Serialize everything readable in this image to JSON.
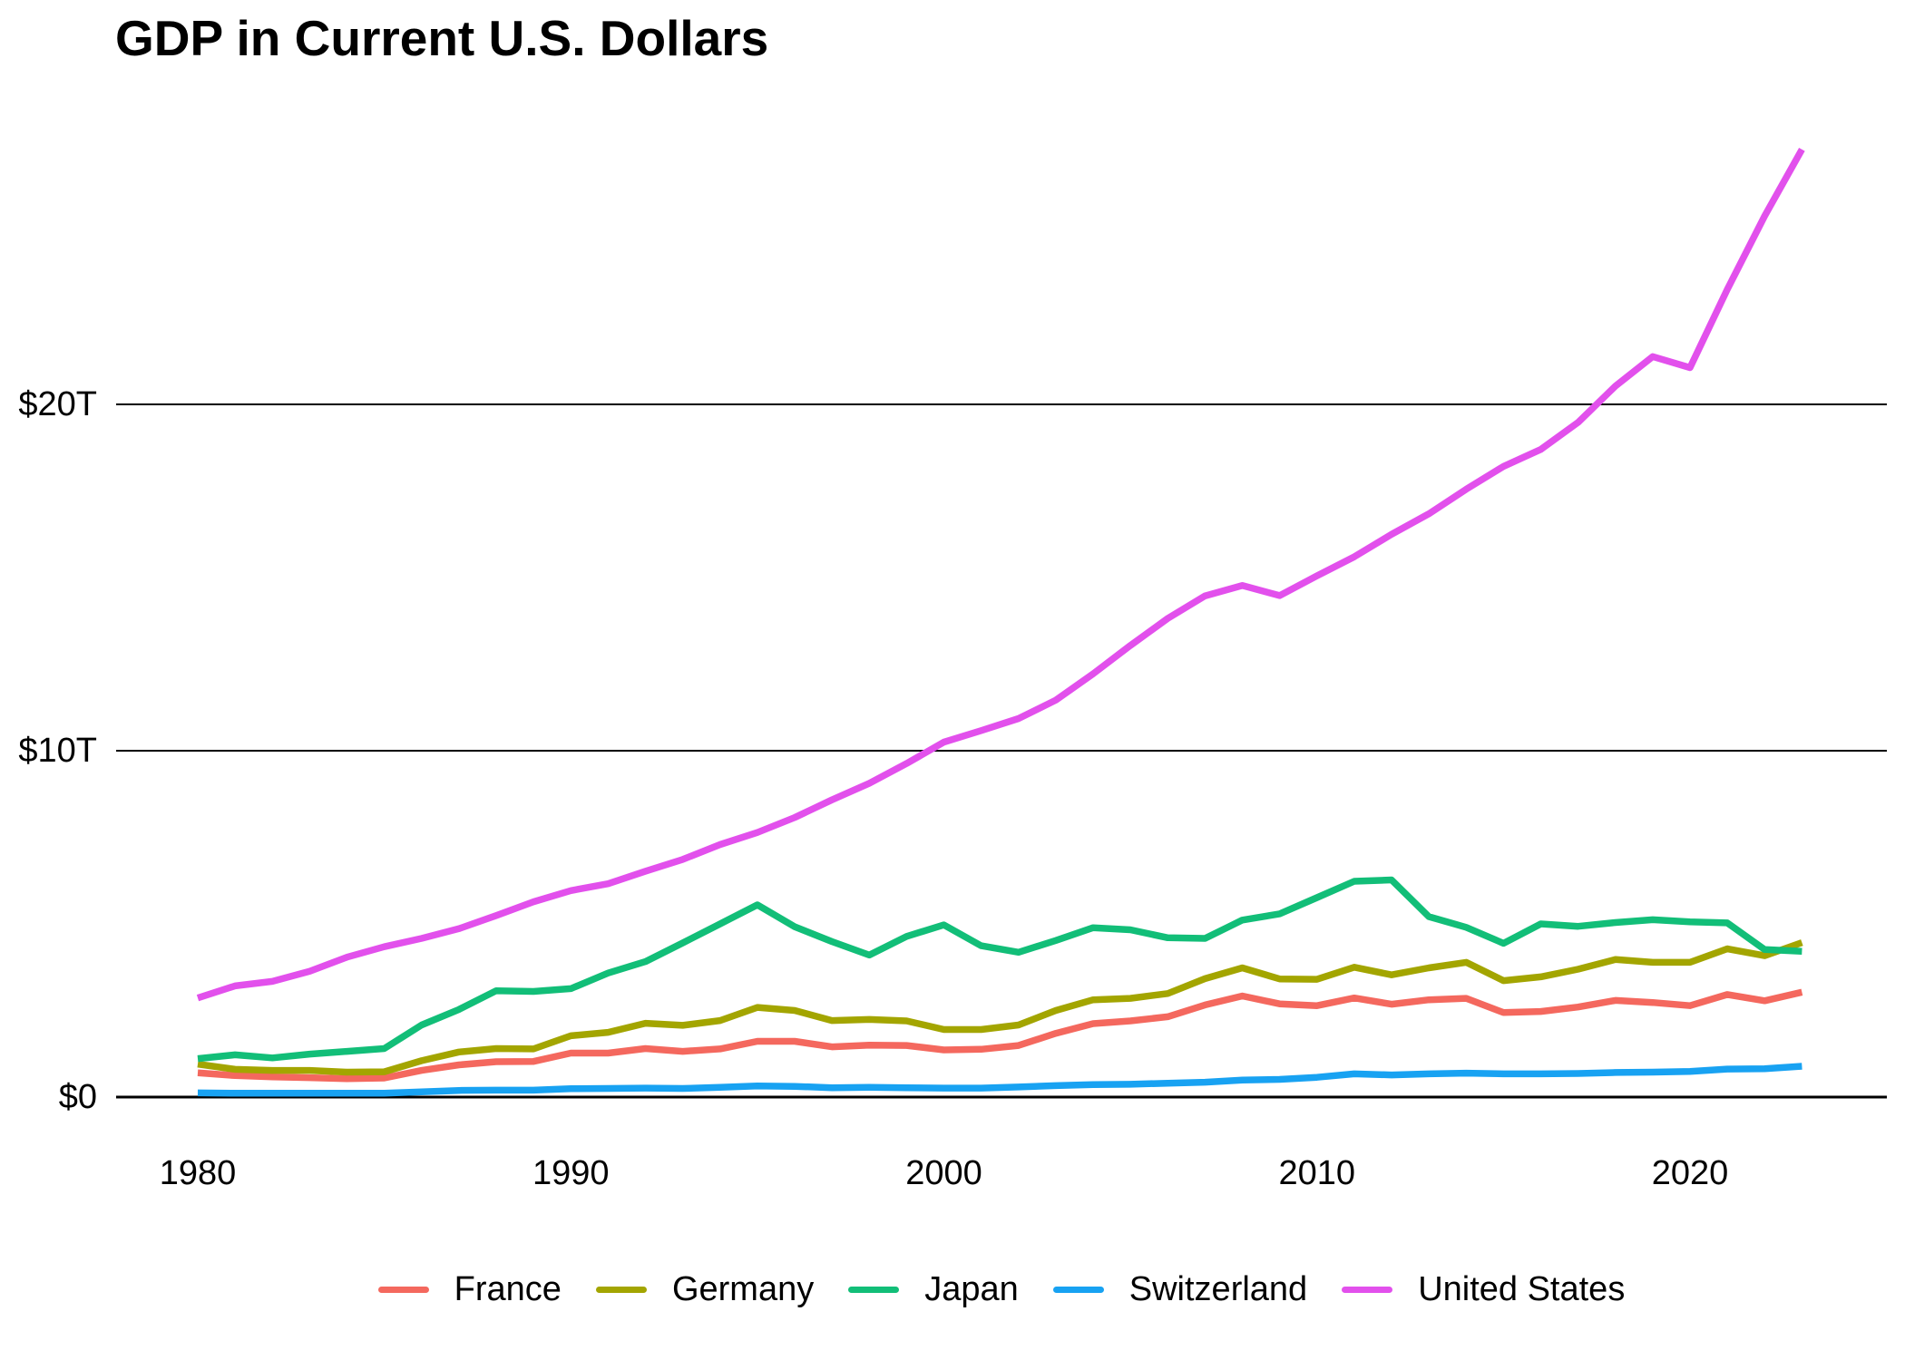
{
  "chart_data": {
    "type": "line",
    "title": "GDP in Current U.S. Dollars",
    "xlabel": "",
    "ylabel": "",
    "xlim": [
      1980,
      2023
    ],
    "ylim": [
      0,
      28
    ],
    "grid": "horizontal",
    "legend_position": "bottom",
    "yticks": [
      {
        "value": 0,
        "label": "$0"
      },
      {
        "value": 10,
        "label": "$10T"
      },
      {
        "value": 20,
        "label": "$20T"
      }
    ],
    "xticks": [
      {
        "value": 1980,
        "label": "1980"
      },
      {
        "value": 1990,
        "label": "1990"
      },
      {
        "value": 2000,
        "label": "2000"
      },
      {
        "value": 2010,
        "label": "2010"
      },
      {
        "value": 2020,
        "label": "2020"
      }
    ],
    "x": [
      1980,
      1981,
      1982,
      1983,
      1984,
      1985,
      1986,
      1987,
      1988,
      1989,
      1990,
      1991,
      1992,
      1993,
      1994,
      1995,
      1996,
      1997,
      1998,
      1999,
      2000,
      2001,
      2002,
      2003,
      2004,
      2005,
      2006,
      2007,
      2008,
      2009,
      2010,
      2011,
      2012,
      2013,
      2014,
      2015,
      2016,
      2017,
      2018,
      2019,
      2020,
      2021,
      2022,
      2023
    ],
    "value_units": "trillions of U.S. dollars",
    "series": [
      {
        "name": "France",
        "color": "#F4685E",
        "values": [
          0.7,
          0.62,
          0.58,
          0.56,
          0.53,
          0.55,
          0.77,
          0.93,
          1.02,
          1.03,
          1.27,
          1.27,
          1.4,
          1.32,
          1.39,
          1.61,
          1.61,
          1.45,
          1.5,
          1.49,
          1.36,
          1.38,
          1.49,
          1.84,
          2.12,
          2.2,
          2.32,
          2.66,
          2.92,
          2.69,
          2.64,
          2.86,
          2.68,
          2.81,
          2.85,
          2.44,
          2.47,
          2.6,
          2.79,
          2.73,
          2.64,
          2.96,
          2.78,
          3.03
        ]
      },
      {
        "name": "Germany",
        "color": "#A3A500",
        "values": [
          0.95,
          0.8,
          0.77,
          0.77,
          0.72,
          0.73,
          1.05,
          1.3,
          1.4,
          1.39,
          1.77,
          1.87,
          2.13,
          2.07,
          2.21,
          2.59,
          2.5,
          2.21,
          2.24,
          2.2,
          1.95,
          1.95,
          2.08,
          2.5,
          2.81,
          2.85,
          2.99,
          3.42,
          3.73,
          3.41,
          3.4,
          3.75,
          3.53,
          3.73,
          3.89,
          3.36,
          3.47,
          3.69,
          3.97,
          3.89,
          3.89,
          4.28,
          4.08,
          4.46
        ]
      },
      {
        "name": "Japan",
        "color": "#12BE78",
        "values": [
          1.11,
          1.22,
          1.13,
          1.24,
          1.32,
          1.4,
          2.08,
          2.53,
          3.07,
          3.05,
          3.13,
          3.58,
          3.91,
          4.45,
          5.0,
          5.55,
          4.92,
          4.49,
          4.1,
          4.64,
          4.97,
          4.37,
          4.18,
          4.52,
          4.89,
          4.83,
          4.6,
          4.58,
          5.11,
          5.29,
          5.76,
          6.23,
          6.27,
          5.21,
          4.9,
          4.44,
          5.0,
          4.93,
          5.04,
          5.12,
          5.06,
          5.03,
          4.26,
          4.21
        ]
      },
      {
        "name": "Switzerland",
        "color": "#18A2F2",
        "values": [
          0.12,
          0.11,
          0.11,
          0.11,
          0.11,
          0.11,
          0.15,
          0.19,
          0.2,
          0.2,
          0.24,
          0.25,
          0.26,
          0.25,
          0.28,
          0.32,
          0.31,
          0.27,
          0.28,
          0.27,
          0.26,
          0.26,
          0.29,
          0.33,
          0.36,
          0.37,
          0.4,
          0.43,
          0.49,
          0.51,
          0.57,
          0.67,
          0.64,
          0.67,
          0.69,
          0.67,
          0.67,
          0.68,
          0.71,
          0.72,
          0.74,
          0.81,
          0.82,
          0.89
        ]
      },
      {
        "name": "United States",
        "color": "#E250EC",
        "values": [
          2.86,
          3.21,
          3.34,
          3.63,
          4.04,
          4.34,
          4.58,
          4.86,
          5.24,
          5.64,
          5.96,
          6.16,
          6.52,
          6.86,
          7.29,
          7.64,
          8.07,
          8.58,
          9.06,
          9.63,
          10.25,
          10.58,
          10.93,
          11.46,
          12.22,
          13.04,
          13.82,
          14.47,
          14.77,
          14.48,
          15.05,
          15.6,
          16.25,
          16.84,
          17.55,
          18.21,
          18.7,
          19.48,
          20.53,
          21.38,
          21.06,
          23.32,
          25.44,
          27.36
        ]
      }
    ]
  }
}
